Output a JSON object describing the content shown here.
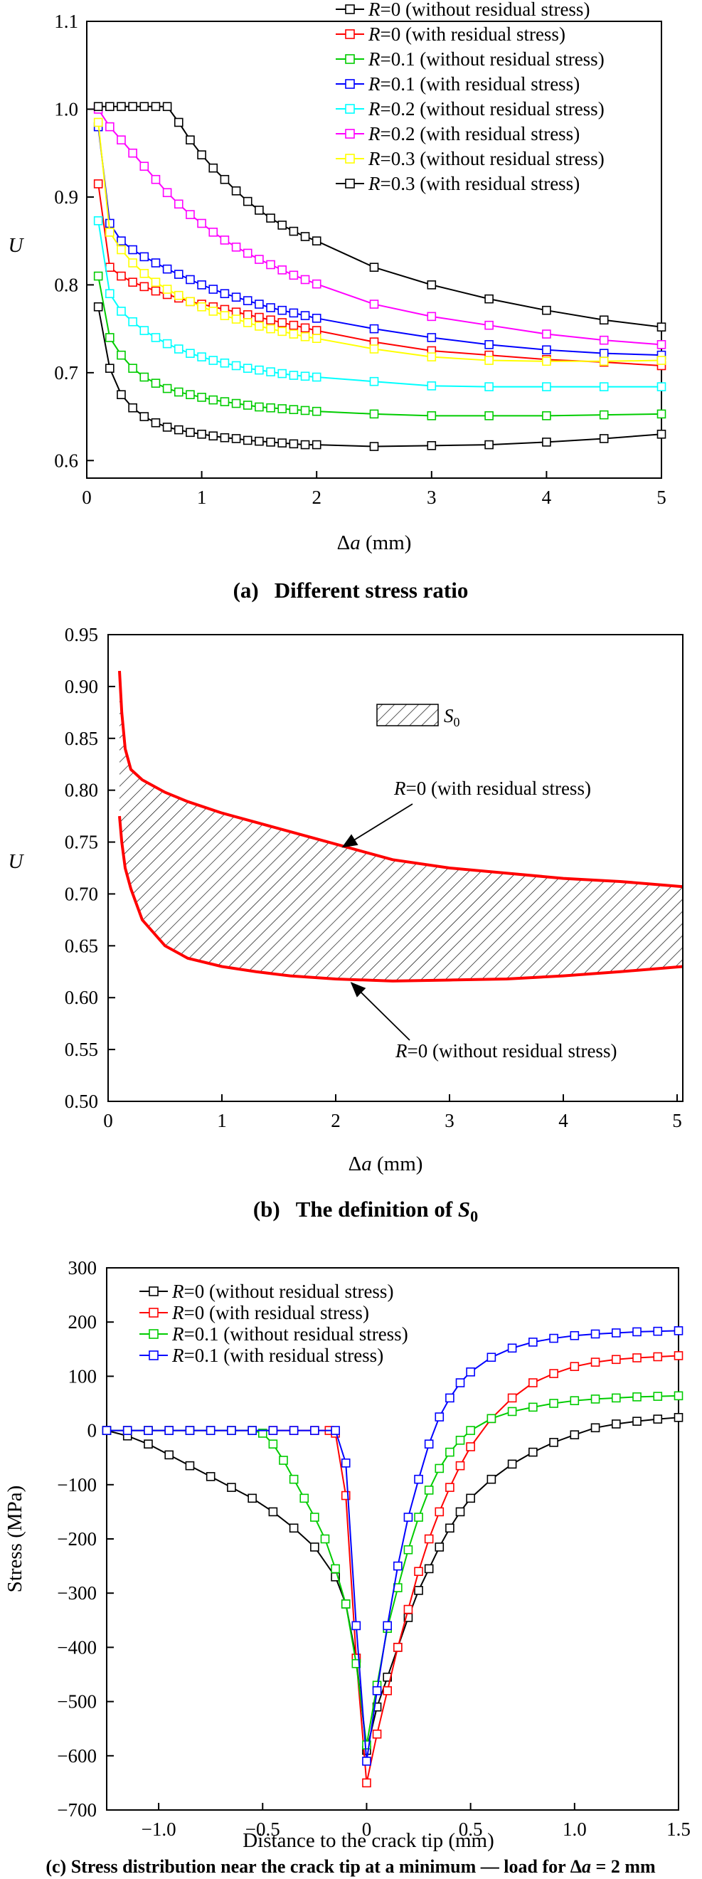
{
  "charts": [
    {
      "type": "line",
      "caption": {
        "label": "(a)",
        "text": "Different stress ratio"
      },
      "xlabel_prefix": "Δ",
      "xlabel_var": "a",
      "xlabel_unit": " (mm)",
      "ylabel": "U",
      "xlim": [
        0,
        5
      ],
      "ylim": [
        0.58,
        1.1
      ],
      "xticks": [
        0,
        1,
        2,
        3,
        4,
        5
      ],
      "xtick_labels": [
        "0",
        "1",
        "2",
        "3",
        "4",
        "5"
      ],
      "yticks": [
        0.6,
        0.7,
        0.8,
        0.9,
        1.0,
        1.1
      ],
      "ytick_labels": [
        "0.6",
        "0.7",
        "0.8",
        "0.9",
        "1.0",
        "1.1"
      ],
      "series": [
        {
          "name": "R=0 (without residual stress)",
          "r": "=0",
          "desc": " (without residual stress)",
          "color": "#000000",
          "x": [
            0.1,
            0.2,
            0.3,
            0.4,
            0.5,
            0.6,
            0.7,
            0.8,
            0.9,
            1.0,
            1.1,
            1.2,
            1.3,
            1.4,
            1.5,
            1.6,
            1.7,
            1.8,
            1.9,
            2.0,
            2.5,
            3.0,
            3.5,
            4.0,
            4.5,
            5.0
          ],
          "y": [
            0.775,
            0.705,
            0.675,
            0.66,
            0.65,
            0.643,
            0.638,
            0.635,
            0.632,
            0.63,
            0.628,
            0.626,
            0.625,
            0.623,
            0.622,
            0.621,
            0.62,
            0.619,
            0.618,
            0.618,
            0.616,
            0.617,
            0.618,
            0.621,
            0.625,
            0.63
          ]
        },
        {
          "name": "R=0 (with residual stress)",
          "r": "=0",
          "desc": " (with residual stress)",
          "color": "#ff0000",
          "x": [
            0.1,
            0.2,
            0.3,
            0.4,
            0.5,
            0.6,
            0.7,
            0.8,
            0.9,
            1.0,
            1.1,
            1.2,
            1.3,
            1.4,
            1.5,
            1.6,
            1.7,
            1.8,
            1.9,
            2.0,
            2.5,
            3.0,
            3.5,
            4.0,
            4.5,
            5.0
          ],
          "y": [
            0.915,
            0.82,
            0.81,
            0.803,
            0.798,
            0.793,
            0.789,
            0.785,
            0.781,
            0.778,
            0.775,
            0.772,
            0.769,
            0.766,
            0.763,
            0.76,
            0.757,
            0.754,
            0.751,
            0.748,
            0.735,
            0.725,
            0.72,
            0.715,
            0.712,
            0.708
          ]
        },
        {
          "name": "R=0.1 (without residual stress)",
          "r": "=0.1",
          "desc": " (without residual stress)",
          "color": "#00cc00",
          "x": [
            0.1,
            0.2,
            0.3,
            0.4,
            0.5,
            0.6,
            0.7,
            0.8,
            0.9,
            1.0,
            1.1,
            1.2,
            1.3,
            1.4,
            1.5,
            1.6,
            1.7,
            1.8,
            1.9,
            2.0,
            2.5,
            3.0,
            3.5,
            4.0,
            4.5,
            5.0
          ],
          "y": [
            0.81,
            0.74,
            0.72,
            0.705,
            0.695,
            0.688,
            0.682,
            0.678,
            0.675,
            0.672,
            0.669,
            0.667,
            0.665,
            0.663,
            0.661,
            0.66,
            0.659,
            0.658,
            0.657,
            0.656,
            0.653,
            0.651,
            0.651,
            0.651,
            0.652,
            0.653
          ]
        },
        {
          "name": "R=0.1 (with residual stress)",
          "r": "=0.1",
          "desc": " (with residual stress)",
          "color": "#0000ff",
          "x": [
            0.1,
            0.2,
            0.3,
            0.4,
            0.5,
            0.6,
            0.7,
            0.8,
            0.9,
            1.0,
            1.1,
            1.2,
            1.3,
            1.4,
            1.5,
            1.6,
            1.7,
            1.8,
            1.9,
            2.0,
            2.5,
            3.0,
            3.5,
            4.0,
            4.5,
            5.0
          ],
          "y": [
            0.98,
            0.87,
            0.85,
            0.84,
            0.832,
            0.825,
            0.818,
            0.812,
            0.806,
            0.8,
            0.795,
            0.79,
            0.786,
            0.782,
            0.778,
            0.774,
            0.771,
            0.768,
            0.765,
            0.762,
            0.75,
            0.74,
            0.732,
            0.726,
            0.722,
            0.72
          ]
        },
        {
          "name": "R=0.2 (without residual stress)",
          "r": "=0.2",
          "desc": " (without residual stress)",
          "color": "#00ffff",
          "x": [
            0.1,
            0.2,
            0.3,
            0.4,
            0.5,
            0.6,
            0.7,
            0.8,
            0.9,
            1.0,
            1.1,
            1.2,
            1.3,
            1.4,
            1.5,
            1.6,
            1.7,
            1.8,
            1.9,
            2.0,
            2.5,
            3.0,
            3.5,
            4.0,
            4.5,
            5.0
          ],
          "y": [
            0.873,
            0.79,
            0.77,
            0.758,
            0.748,
            0.74,
            0.733,
            0.727,
            0.722,
            0.718,
            0.714,
            0.711,
            0.708,
            0.705,
            0.703,
            0.701,
            0.699,
            0.697,
            0.696,
            0.695,
            0.69,
            0.685,
            0.684,
            0.684,
            0.684,
            0.684
          ]
        },
        {
          "name": "R=0.2 (with residual stress)",
          "r": "=0.2",
          "desc": " (with residual stress)",
          "color": "#ff00ff",
          "x": [
            0.1,
            0.2,
            0.3,
            0.4,
            0.5,
            0.6,
            0.7,
            0.8,
            0.9,
            1.0,
            1.1,
            1.2,
            1.3,
            1.4,
            1.5,
            1.6,
            1.7,
            1.8,
            1.9,
            2.0,
            2.5,
            3.0,
            3.5,
            4.0,
            4.5,
            5.0
          ],
          "y": [
            1.0,
            0.98,
            0.965,
            0.95,
            0.935,
            0.92,
            0.905,
            0.892,
            0.88,
            0.87,
            0.86,
            0.851,
            0.843,
            0.836,
            0.829,
            0.823,
            0.817,
            0.811,
            0.806,
            0.801,
            0.778,
            0.764,
            0.754,
            0.744,
            0.737,
            0.732
          ]
        },
        {
          "name": "R=0.3 (without residual stress)",
          "r": "=0.3",
          "desc": " (without residual stress)",
          "color": "#ffff00",
          "x": [
            0.1,
            0.2,
            0.3,
            0.4,
            0.5,
            0.6,
            0.7,
            0.8,
            0.9,
            1.0,
            1.1,
            1.2,
            1.3,
            1.4,
            1.5,
            1.6,
            1.7,
            1.8,
            1.9,
            2.0,
            2.5,
            3.0,
            3.5,
            4.0,
            4.5,
            5.0
          ],
          "y": [
            0.985,
            0.86,
            0.84,
            0.825,
            0.813,
            0.803,
            0.795,
            0.788,
            0.781,
            0.775,
            0.77,
            0.765,
            0.761,
            0.757,
            0.753,
            0.75,
            0.747,
            0.744,
            0.741,
            0.739,
            0.727,
            0.718,
            0.714,
            0.713,
            0.713,
            0.714
          ]
        },
        {
          "name": "R=0.3 (with residual stress)",
          "r": "=0.3",
          "desc": " (with residual stress)",
          "color": "#000000",
          "x": [
            0.1,
            0.2,
            0.3,
            0.4,
            0.5,
            0.6,
            0.7,
            0.8,
            0.9,
            1.0,
            1.1,
            1.2,
            1.3,
            1.4,
            1.5,
            1.6,
            1.7,
            1.8,
            1.9,
            2.0,
            2.5,
            3.0,
            3.5,
            4.0,
            4.5,
            5.0
          ],
          "y": [
            1.003,
            1.003,
            1.003,
            1.003,
            1.003,
            1.003,
            1.003,
            0.985,
            0.965,
            0.948,
            0.933,
            0.92,
            0.907,
            0.895,
            0.885,
            0.876,
            0.868,
            0.861,
            0.855,
            0.85,
            0.82,
            0.8,
            0.784,
            0.771,
            0.76,
            0.752
          ]
        }
      ]
    },
    {
      "type": "area",
      "caption": {
        "label": "(b)",
        "text": "The definition of ",
        "var": "S",
        "sub": "0"
      },
      "xlabel_prefix": "Δ",
      "xlabel_var": "a",
      "xlabel_unit": " (mm)",
      "ylabel": "U",
      "xlim": [
        0,
        5.05
      ],
      "ylim": [
        0.5,
        0.95
      ],
      "xticks": [
        0,
        1,
        2,
        3,
        4,
        5
      ],
      "xtick_labels": [
        "0",
        "1",
        "2",
        "3",
        "4",
        "5"
      ],
      "yticks": [
        0.5,
        0.55,
        0.6,
        0.65,
        0.7,
        0.75,
        0.8,
        0.85,
        0.9,
        0.95
      ],
      "ytick_labels": [
        "0.50",
        "0.55",
        "0.60",
        "0.65",
        "0.70",
        "0.75",
        "0.80",
        "0.85",
        "0.90",
        "0.95"
      ],
      "legend": {
        "var": "S",
        "sub": "0"
      },
      "upper": {
        "r": "=0",
        "desc": " (with residual stress)",
        "x": [
          0.1,
          0.12,
          0.15,
          0.2,
          0.3,
          0.5,
          0.7,
          1.0,
          1.3,
          1.6,
          2.0,
          2.5,
          3.0,
          3.5,
          4.0,
          4.5,
          5.05
        ],
        "y": [
          0.915,
          0.875,
          0.84,
          0.82,
          0.81,
          0.798,
          0.789,
          0.778,
          0.769,
          0.76,
          0.748,
          0.733,
          0.725,
          0.72,
          0.715,
          0.712,
          0.707
        ]
      },
      "lower": {
        "r": "=0",
        "desc": " (without residual stress)",
        "x": [
          0.1,
          0.12,
          0.15,
          0.2,
          0.3,
          0.5,
          0.7,
          1.0,
          1.3,
          1.6,
          2.0,
          2.5,
          3.0,
          3.5,
          4.0,
          4.5,
          5.05
        ],
        "y": [
          0.775,
          0.75,
          0.725,
          0.705,
          0.675,
          0.65,
          0.638,
          0.63,
          0.625,
          0.621,
          0.618,
          0.616,
          0.617,
          0.618,
          0.621,
          0.625,
          0.63
        ]
      },
      "annotations": [
        {
          "target": "upper",
          "x_data": 2.0,
          "y_data": 0.748
        },
        {
          "target": "lower",
          "x_data": 2.1,
          "y_data": 0.617
        }
      ]
    },
    {
      "type": "line",
      "caption": {
        "label": "(c)",
        "line1": "Stress distribution near the crack tip at a minimum",
        "line2_pre": "load for ",
        "line2_delta": "Δ",
        "line2_var": "a",
        "line2_post": " = 2 mm"
      },
      "xlabel": "Distance to the crack tip (mm)",
      "ylabel": "Stress (MPa)",
      "xlim": [
        -1.25,
        1.5
      ],
      "ylim": [
        -700,
        300
      ],
      "xticks": [
        -1.0,
        -0.5,
        0.0,
        0.5,
        1.0,
        1.5
      ],
      "xtick_labels": [
        "−1.0",
        "−0.5",
        "0",
        "0.5",
        "1.0",
        "1.5"
      ],
      "yticks": [
        -700,
        -600,
        -500,
        -400,
        -300,
        -200,
        -100,
        0,
        100,
        200,
        300
      ],
      "ytick_labels": [
        "−700",
        "−600",
        "−500",
        "−400",
        "−300",
        "−200",
        "−100",
        "0",
        "100",
        "200",
        "300"
      ],
      "series": [
        {
          "name": "R=0 (without residual stress)",
          "r": "=0",
          "desc": " (without residual stress)",
          "color": "#000000",
          "x": [
            -1.25,
            -1.15,
            -1.05,
            -0.95,
            -0.85,
            -0.75,
            -0.65,
            -0.55,
            -0.45,
            -0.35,
            -0.25,
            -0.15,
            -0.1,
            -0.05,
            0.0,
            0.05,
            0.1,
            0.15,
            0.2,
            0.25,
            0.3,
            0.35,
            0.4,
            0.45,
            0.5,
            0.6,
            0.7,
            0.8,
            0.9,
            1.0,
            1.1,
            1.2,
            1.3,
            1.4,
            1.5
          ],
          "y": [
            0,
            -10,
            -25,
            -45,
            -65,
            -85,
            -105,
            -125,
            -150,
            -180,
            -215,
            -270,
            -320,
            -420,
            -590,
            -510,
            -455,
            -400,
            -345,
            -295,
            -255,
            -215,
            -180,
            -150,
            -125,
            -90,
            -62,
            -40,
            -22,
            -8,
            5,
            12,
            17,
            21,
            24
          ]
        },
        {
          "name": "R=0 (with residual stress)",
          "r": "=0",
          "desc": " (with residual stress)",
          "color": "#ff0000",
          "x": [
            -1.25,
            -1.15,
            -1.05,
            -0.95,
            -0.85,
            -0.75,
            -0.65,
            -0.55,
            -0.45,
            -0.35,
            -0.25,
            -0.18,
            -0.15,
            -0.1,
            -0.05,
            0.0,
            0.05,
            0.1,
            0.15,
            0.2,
            0.25,
            0.3,
            0.35,
            0.4,
            0.45,
            0.5,
            0.6,
            0.7,
            0.8,
            0.9,
            1.0,
            1.1,
            1.2,
            1.3,
            1.4,
            1.5
          ],
          "y": [
            0,
            0,
            0,
            0,
            0,
            0,
            0,
            0,
            0,
            0,
            0,
            0,
            -5,
            -120,
            -420,
            -650,
            -560,
            -480,
            -400,
            -330,
            -260,
            -200,
            -150,
            -105,
            -65,
            -30,
            22,
            60,
            88,
            105,
            118,
            126,
            131,
            134,
            136,
            138
          ]
        },
        {
          "name": "R=0.1 (without residual stress)",
          "r": "=0.1",
          "desc": " (without residual stress)",
          "color": "#00cc00",
          "x": [
            -1.25,
            -1.15,
            -1.05,
            -0.95,
            -0.85,
            -0.75,
            -0.65,
            -0.55,
            -0.5,
            -0.45,
            -0.4,
            -0.35,
            -0.3,
            -0.25,
            -0.2,
            -0.15,
            -0.1,
            -0.05,
            0.0,
            0.05,
            0.1,
            0.15,
            0.2,
            0.25,
            0.3,
            0.35,
            0.4,
            0.45,
            0.5,
            0.6,
            0.7,
            0.8,
            0.9,
            1.0,
            1.1,
            1.2,
            1.3,
            1.4,
            1.5
          ],
          "y": [
            0,
            0,
            0,
            0,
            0,
            0,
            0,
            0,
            -5,
            -25,
            -55,
            -90,
            -125,
            -160,
            -200,
            -255,
            -320,
            -430,
            -580,
            -470,
            -365,
            -290,
            -220,
            -160,
            -110,
            -70,
            -40,
            -18,
            0,
            22,
            35,
            43,
            50,
            55,
            58,
            60,
            62,
            63,
            64
          ]
        },
        {
          "name": "R=0.1 (with residual stress)",
          "r": "=0.1",
          "desc": " (with residual stress)",
          "color": "#0000ff",
          "x": [
            -1.25,
            -1.15,
            -1.05,
            -0.95,
            -0.85,
            -0.75,
            -0.65,
            -0.55,
            -0.45,
            -0.35,
            -0.25,
            -0.15,
            -0.1,
            -0.05,
            0.0,
            0.05,
            0.1,
            0.15,
            0.2,
            0.25,
            0.3,
            0.35,
            0.4,
            0.45,
            0.5,
            0.6,
            0.7,
            0.8,
            0.9,
            1.0,
            1.1,
            1.2,
            1.3,
            1.4,
            1.5
          ],
          "y": [
            0,
            0,
            0,
            0,
            0,
            0,
            0,
            0,
            0,
            0,
            0,
            0,
            -60,
            -360,
            -610,
            -480,
            -360,
            -250,
            -160,
            -90,
            -25,
            25,
            60,
            88,
            108,
            135,
            152,
            163,
            170,
            175,
            178,
            180,
            182,
            183,
            184
          ]
        }
      ]
    }
  ]
}
